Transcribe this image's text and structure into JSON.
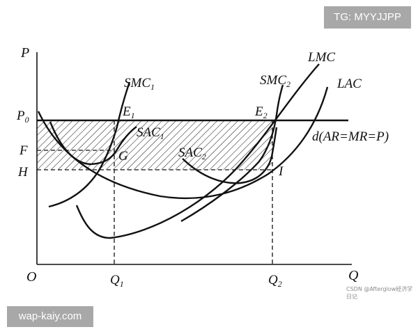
{
  "badges": {
    "top_right": "TG: MYYJJPP",
    "bottom_left": "wap-kaiy.com"
  },
  "watermark": "CSDN @Afterglow经济学日记",
  "axes": {
    "y_label": "P",
    "x_label": "Q",
    "origin": "O"
  },
  "price_labels": {
    "p0": "P",
    "p0_sub": "0",
    "f": "F",
    "h": "H"
  },
  "quantity_labels": {
    "q1": "Q",
    "q1_sub": "1",
    "q2": "Q",
    "q2_sub": "2"
  },
  "curve_labels": {
    "smc1": "SMC",
    "smc1_sub": "1",
    "smc2": "SMC",
    "smc2_sub": "2",
    "sac1": "SAC",
    "sac1_sub": "1",
    "sac2": "SAC",
    "sac2_sub": "2",
    "lmc": "LMC",
    "lac": "LAC",
    "demand": "d(AR=MR=P)"
  },
  "point_labels": {
    "e1": "E",
    "e1_sub": "1",
    "e2": "E",
    "e2_sub": "2",
    "g": "G",
    "i": "I"
  }
}
